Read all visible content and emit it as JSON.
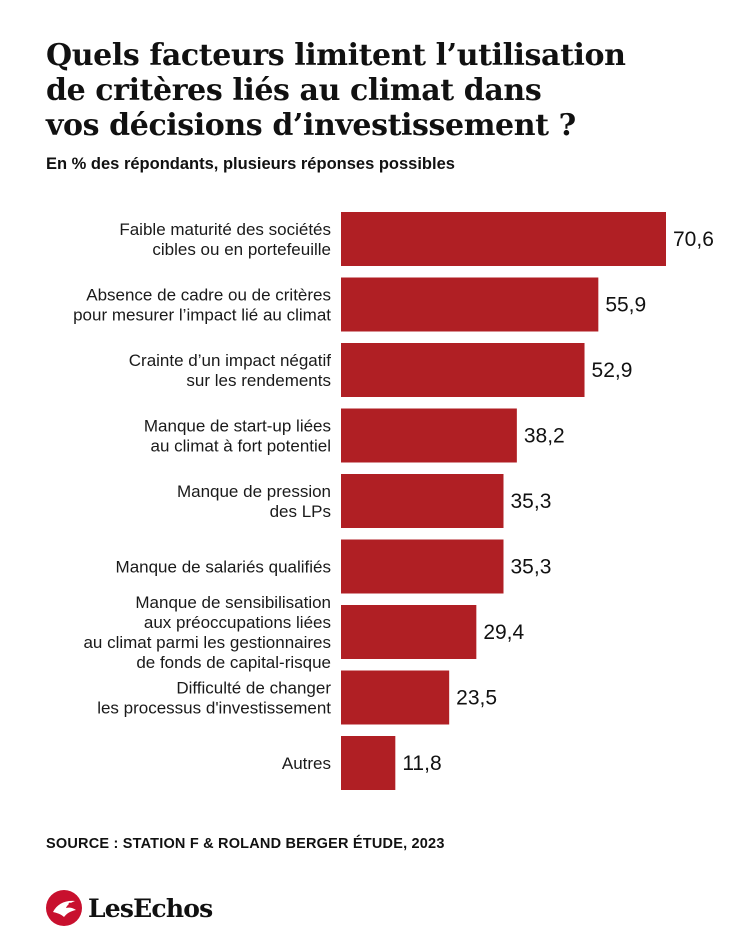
{
  "title_lines": [
    "Quels facteurs limitent l’utilisation",
    "de critères liés au climat dans",
    "vos décisions d’investissement ?"
  ],
  "subtitle": "En % des répondants, plusieurs réponses possibles",
  "source": "SOURCE : STATION F & ROLAND BERGER ÉTUDE, 2023",
  "brand": {
    "name": "LesEchos",
    "logo_icon": "les-echos-logo-icon"
  },
  "colors": {
    "bar": "#b01f24",
    "brand": "#c8102e"
  },
  "chart_data": {
    "type": "bar",
    "orientation": "horizontal",
    "categories": [
      [
        "Faible maturité des sociétés",
        "cibles ou en portefeuille"
      ],
      [
        "Absence de cadre ou de critères",
        "pour mesurer l’impact lié au climat"
      ],
      [
        "Crainte d’un impact négatif",
        "sur les rendements"
      ],
      [
        "Manque de start-up liées",
        "au climat à fort potentiel"
      ],
      [
        "Manque de pression",
        "des LPs"
      ],
      [
        "Manque de salariés qualifiés"
      ],
      [
        "Manque de sensibilisation",
        "aux préoccupations liées",
        "au climat parmi les gestionnaires",
        "de fonds de capital-risque"
      ],
      [
        "Difficulté de changer",
        "les processus d'investissement"
      ],
      [
        "Autres"
      ]
    ],
    "values": [
      70.6,
      55.9,
      52.9,
      38.2,
      35.3,
      35.3,
      29.4,
      23.5,
      11.8
    ],
    "value_labels": [
      "70,6",
      "55,9",
      "52,9",
      "38,2",
      "35,3",
      "35,3",
      "29,4",
      "23,5",
      "11,8"
    ],
    "xlim": [
      0,
      70.6
    ],
    "grid": false,
    "legend": "none"
  }
}
